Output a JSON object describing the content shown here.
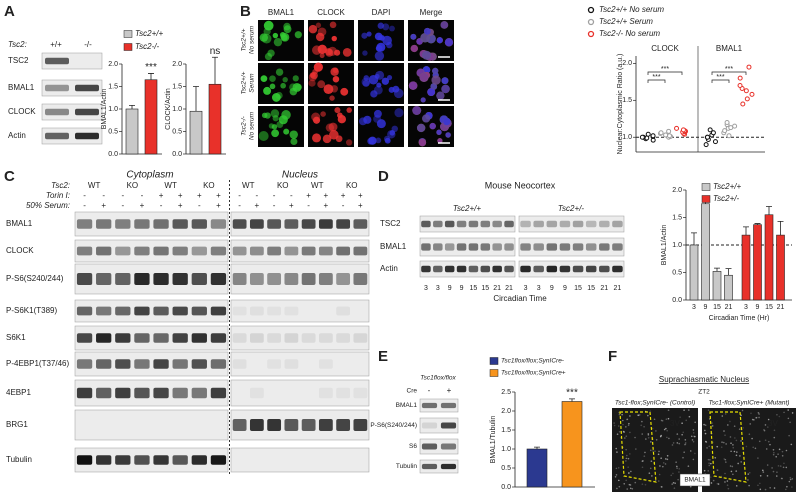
{
  "panels": {
    "A": {
      "label": "A",
      "genotype_label": "Tsc2:",
      "genotypes": [
        "+/+",
        "-/-"
      ],
      "blots": [
        "TSC2",
        "BMAL1",
        "CLOCK",
        "Actin"
      ]
    },
    "B": {
      "label": "B",
      "channels": [
        "BMAL1",
        "CLOCK",
        "DAPI",
        "Merge"
      ],
      "conditions": [
        [
          "Tsc2+/+",
          "No serum"
        ],
        [
          "Tsc2+/+",
          "Serum"
        ],
        [
          "Tsc2-/-",
          "No serum"
        ]
      ]
    },
    "C": {
      "label": "C",
      "genotype_label": "Tsc2:",
      "fractions": [
        "Cytoplasm",
        "Nucleus"
      ],
      "genotypes": [
        "WT",
        "KO",
        "WT",
        "KO",
        "WT",
        "KO",
        "WT",
        "KO"
      ],
      "torin_label": "Torin I:",
      "torin": [
        "-",
        "-",
        "-",
        "-",
        "+",
        "+",
        "+",
        "+",
        "-",
        "-",
        "-",
        "-",
        "+",
        "+",
        "+",
        "+"
      ],
      "serum_label": "50% Serum:",
      "serum": [
        "-",
        "+",
        "-",
        "+",
        "-",
        "+",
        "-",
        "+",
        "-",
        "+",
        "-",
        "+",
        "-",
        "+",
        "-",
        "+"
      ],
      "blots": [
        "BMAL1",
        "CLOCK",
        "P-S6(S240/244)",
        "P-S6K1(T389)",
        "S6K1",
        "P-4EBP1(T37/46)",
        "4EBP1",
        "BRG1",
        "Tubulin"
      ]
    },
    "D": {
      "label": "D",
      "title": "Mouse Neocortex",
      "genotypes": [
        "Tsc2+/+",
        "Tsc2+/-"
      ],
      "blots": [
        "TSC2",
        "BMAL1",
        "Actin"
      ],
      "lanes": [
        3,
        3,
        9,
        9,
        15,
        15,
        21,
        21
      ],
      "xlabel": "Circadian Time"
    },
    "E": {
      "label": "E",
      "genotype": "Tsc1flox/flox",
      "cre_label": "Cre",
      "cre": [
        "-",
        "+"
      ],
      "blots": [
        "BMAL1",
        "P-S6(S240/244)",
        "S6",
        "Tubulin"
      ]
    },
    "F": {
      "label": "F",
      "title": "Suprachiasmatic Nucleus",
      "time": "ZT2",
      "images": [
        {
          "title": "Tsc1-flox;SynICre- (Control)",
          "region": "3V"
        },
        {
          "title": "Tsc1-flox;SynICre+ (Mutant)",
          "region": "3V"
        }
      ],
      "stain": "BMAL1"
    }
  },
  "chart_data": [
    {
      "type": "bar",
      "ylabel": "BMAL1/Actin",
      "ylim": [
        0,
        2.0
      ],
      "yticks": [
        {
          "value": 0,
          "label": "0.0"
        },
        {
          "value": 0.5,
          "label": "0.5"
        },
        {
          "value": 1,
          "label": "1.0"
        },
        {
          "value": 1.5,
          "label": "1.5"
        },
        {
          "value": 2,
          "label": "2.0"
        }
      ],
      "series": [
        {
          "name": "Tsc2+/+",
          "color": "#c8c8c8",
          "values": [
            1.0
          ],
          "errors": [
            0.08
          ]
        },
        {
          "name": "Tsc2-/-",
          "color": "#e8312a",
          "values": [
            1.65
          ],
          "errors": [
            0.14
          ]
        }
      ],
      "annotation": "***"
    },
    {
      "type": "bar",
      "ylabel": "CLOCK/Actin",
      "ylim": [
        0,
        2.0
      ],
      "yticks": [
        {
          "value": 0,
          "label": "0.0"
        },
        {
          "value": 0.5,
          "label": "0.5"
        },
        {
          "value": 1,
          "label": "1.0"
        },
        {
          "value": 1.5,
          "label": "1.5"
        },
        {
          "value": 2,
          "label": "2.0"
        }
      ],
      "series": [
        {
          "color": "#c8c8c8",
          "values": [
            0.95
          ],
          "errors": [
            0.55
          ]
        },
        {
          "color": "#e8312a",
          "values": [
            1.55
          ],
          "errors": [
            0.6
          ]
        }
      ],
      "annotation": "ns"
    },
    {
      "type": "strip",
      "ylabel": "Nuclear:Cytoplasmic Ratio (a.u.)",
      "ylim": [
        0.8,
        2.1
      ],
      "yticks": [
        {
          "value": 1,
          "label": "1.0"
        },
        {
          "value": 1.5,
          "label": "1.5"
        },
        {
          "value": 2,
          "label": "2.0"
        }
      ],
      "reference": 1,
      "groups": [
        "CLOCK",
        "BMAL1"
      ],
      "series": [
        {
          "name": "Tsc2+/+ No serum",
          "color": "#111111",
          "values": [
            [
              0.96,
              0.98,
              0.99,
              1.0,
              1.0,
              1.01,
              1.02,
              1.04
            ],
            [
              0.9,
              0.94,
              0.97,
              1.0,
              1.0,
              1.03,
              1.06,
              1.1
            ]
          ]
        },
        {
          "name": "Tsc2+/+ Serum",
          "color": "#a0a0a0",
          "values": [
            [
              1.0,
              1.01,
              1.02,
              1.03,
              1.03,
              1.05,
              1.06,
              1.08
            ],
            [
              1.02,
              1.06,
              1.09,
              1.12,
              1.13,
              1.15,
              1.17,
              1.2
            ]
          ]
        },
        {
          "name": "Tsc2-/- No serum",
          "color": "#e8312a",
          "values": [
            [
              1.04,
              1.05,
              1.07,
              1.08,
              1.08,
              1.09,
              1.1,
              1.12
            ],
            [
              1.45,
              1.52,
              1.58,
              1.63,
              1.66,
              1.7,
              1.8,
              1.95
            ]
          ]
        }
      ],
      "annotations": [
        "***",
        "***",
        "***",
        "***"
      ]
    },
    {
      "type": "bar",
      "ylabel": "BMAL1/Actin",
      "xlabel": "Circadian Time (Hr)",
      "ylim": [
        0,
        2.0
      ],
      "yticks": [
        {
          "value": 0,
          "label": "0.0"
        },
        {
          "value": 0.5,
          "label": "0.5"
        },
        {
          "value": 1,
          "label": "1.0"
        },
        {
          "value": 1.5,
          "label": "1.5"
        },
        {
          "value": 2,
          "label": "2.0"
        }
      ],
      "reference": 1,
      "categories": [
        3,
        9,
        15,
        21
      ],
      "series": [
        {
          "name": "Tsc2+/+",
          "color": "#c8c8c8",
          "values": [
            1.0,
            1.75,
            0.52,
            0.45
          ],
          "errors": [
            0.22,
            0.07,
            0.06,
            0.12
          ]
        },
        {
          "name": "Tsc2+/-",
          "color": "#e8312a",
          "values": [
            1.18,
            1.37,
            1.55,
            1.18
          ],
          "errors": [
            0.15,
            0.02,
            0.15,
            0.25
          ]
        }
      ]
    },
    {
      "type": "bar",
      "ylabel": "BMAL1/Tubulin",
      "ylim": [
        0,
        2.5
      ],
      "yticks": [
        {
          "value": 0,
          "label": "0.0"
        },
        {
          "value": 0.5,
          "label": "0.5"
        },
        {
          "value": 1,
          "label": "1.0"
        },
        {
          "value": 1.5,
          "label": "1.5"
        },
        {
          "value": 2,
          "label": "2.0"
        },
        {
          "value": 2.5,
          "label": "2.5"
        }
      ],
      "series": [
        {
          "name": "Tsc1flox/flox;SynICre-",
          "color": "#2b3990",
          "values": [
            1.0
          ],
          "errors": [
            0.05
          ]
        },
        {
          "name": "Tsc1flox/flox;SynICre+",
          "color": "#f7941d",
          "values": [
            2.25
          ],
          "errors": [
            0.07
          ]
        }
      ],
      "annotation": "***"
    }
  ]
}
